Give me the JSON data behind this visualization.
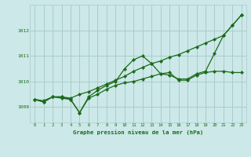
{
  "title": "Graphe pression niveau de la mer (hPa)",
  "background_color": "#cce8e8",
  "grid_color": "#aacccc",
  "line_color": "#1a6b1a",
  "xlim": [
    -0.5,
    23.5
  ],
  "ylim": [
    1008.4,
    1013.0
  ],
  "yticks": [
    1009,
    1010,
    1011,
    1012
  ],
  "xticks": [
    0,
    1,
    2,
    3,
    4,
    5,
    6,
    7,
    8,
    9,
    10,
    11,
    12,
    13,
    14,
    15,
    16,
    17,
    18,
    19,
    20,
    21,
    22,
    23
  ],
  "line1_x": [
    0,
    1,
    2,
    3,
    4,
    5,
    6,
    7,
    8,
    9,
    10,
    11,
    12,
    13,
    14,
    15,
    16,
    17,
    18,
    19,
    20,
    21,
    22,
    23
  ],
  "line1_y": [
    1009.3,
    1009.2,
    1009.4,
    1009.4,
    1009.3,
    1008.78,
    1009.4,
    1009.65,
    1009.85,
    1010.0,
    1010.5,
    1010.85,
    1011.0,
    1010.7,
    1010.3,
    1010.25,
    1010.1,
    1010.1,
    1010.3,
    1010.4,
    1011.1,
    1011.8,
    1012.2,
    1012.6
  ],
  "line2_x": [
    0,
    1,
    2,
    3,
    4,
    5,
    6,
    7,
    8,
    9,
    10,
    11,
    12,
    13,
    14,
    15,
    16,
    17,
    18,
    19,
    20,
    21,
    22,
    23
  ],
  "line2_y": [
    1009.3,
    1009.2,
    1009.4,
    1009.35,
    1009.3,
    1008.78,
    1009.35,
    1009.5,
    1009.7,
    1009.85,
    1009.95,
    1010.0,
    1010.1,
    1010.2,
    1010.3,
    1010.35,
    1010.05,
    1010.05,
    1010.25,
    1010.35,
    1010.4,
    1010.4,
    1010.35,
    1010.35
  ],
  "line3_x": [
    0,
    1,
    2,
    3,
    4,
    5,
    6,
    7,
    8,
    9,
    10,
    11,
    12,
    13,
    14,
    15,
    16,
    17,
    18,
    19,
    20,
    21,
    22,
    23
  ],
  "line3_y": [
    1009.3,
    1009.25,
    1009.4,
    1009.4,
    1009.35,
    1009.5,
    1009.6,
    1009.75,
    1009.9,
    1010.05,
    1010.2,
    1010.4,
    1010.55,
    1010.7,
    1010.8,
    1010.95,
    1011.05,
    1011.2,
    1011.35,
    1011.5,
    1011.65,
    1011.8,
    1012.2,
    1012.6
  ]
}
